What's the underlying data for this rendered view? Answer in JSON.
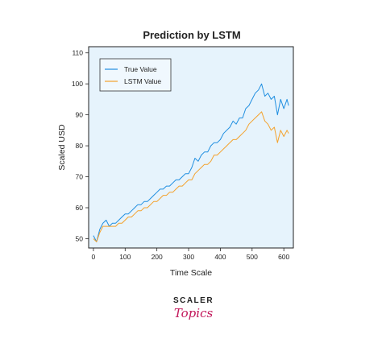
{
  "brand": {
    "line1": "SCALER",
    "line2": "Topics",
    "accent_color": "#c2185b",
    "text_color": "#222222"
  },
  "chart_data": {
    "type": "line",
    "title": "Prediction by LSTM",
    "xlabel": "Time Scale",
    "ylabel": "Scaled USD",
    "xlim": [
      -15,
      630
    ],
    "ylim": [
      47,
      112
    ],
    "xticks": [
      0,
      100,
      200,
      300,
      400,
      500,
      600
    ],
    "yticks": [
      50,
      60,
      70,
      80,
      90,
      100,
      110
    ],
    "grid": false,
    "legend_position": "top-left",
    "plot_background": "#e6f3fc",
    "x": [
      0,
      10,
      20,
      30,
      40,
      50,
      60,
      70,
      80,
      90,
      100,
      110,
      120,
      130,
      140,
      150,
      160,
      170,
      180,
      190,
      200,
      210,
      220,
      230,
      240,
      250,
      260,
      270,
      280,
      290,
      300,
      310,
      320,
      330,
      340,
      350,
      360,
      370,
      380,
      390,
      400,
      410,
      420,
      430,
      440,
      450,
      460,
      470,
      480,
      490,
      500,
      510,
      520,
      530,
      540,
      550,
      560,
      570,
      580,
      590,
      600,
      610,
      615
    ],
    "series": [
      {
        "name": "True Value",
        "color": "#1f8ee0",
        "values": [
          51,
          49,
          53,
          55,
          56,
          54,
          55,
          55,
          56,
          57,
          58,
          58,
          59,
          60,
          61,
          61,
          62,
          62,
          63,
          64,
          65,
          66,
          66,
          67,
          67,
          68,
          69,
          69,
          70,
          71,
          71,
          73,
          76,
          75,
          77,
          78,
          78,
          80,
          81,
          81,
          82,
          84,
          85,
          86,
          88,
          87,
          89,
          89,
          92,
          93,
          95,
          97,
          98,
          100,
          96,
          97,
          95,
          96,
          90,
          95,
          92,
          95,
          93
        ]
      },
      {
        "name": "LSTM Value",
        "color": "#f4a12b",
        "values": [
          50,
          49,
          52,
          54,
          54,
          54,
          54,
          54,
          55,
          55,
          56,
          57,
          57,
          58,
          59,
          59,
          60,
          60,
          61,
          62,
          62,
          63,
          64,
          64,
          65,
          65,
          66,
          67,
          67,
          68,
          69,
          69,
          71,
          72,
          73,
          74,
          74,
          75,
          77,
          77,
          78,
          79,
          80,
          81,
          82,
          82,
          83,
          84,
          85,
          87,
          88,
          89,
          90,
          91,
          88,
          87,
          85,
          86,
          81,
          85,
          83,
          85,
          84
        ]
      }
    ]
  }
}
